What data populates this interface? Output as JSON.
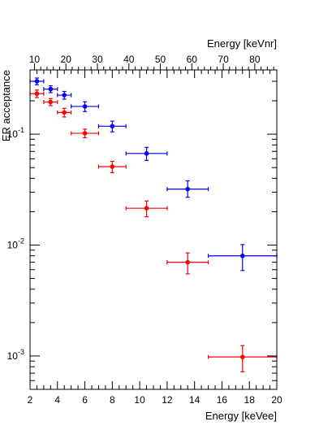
{
  "chart_data": {
    "type": "scatter",
    "xlabel": "Energy [keVee]",
    "x2label": "Energy [keVnr]",
    "ylabel": "ER acceptance",
    "xlim": [
      2,
      20
    ],
    "x2lim": [
      8.6,
      87
    ],
    "ylim": [
      0.0005,
      0.38
    ],
    "yscale": "log",
    "grid": false,
    "x_ticks": [
      "2",
      "4",
      "6",
      "8",
      "10",
      "12",
      "14",
      "16",
      "18",
      "20"
    ],
    "x2_ticks": [
      "10",
      "20",
      "30",
      "40",
      "50",
      "60",
      "70",
      "80"
    ],
    "y_ticks": [
      {
        "base": "10",
        "exp": "-1",
        "value": 0.1
      },
      {
        "base": "10",
        "exp": "-2",
        "value": 0.01
      },
      {
        "base": "10",
        "exp": "-3",
        "value": 0.001
      }
    ],
    "series": [
      {
        "color": "#0000ff",
        "points": [
          {
            "x": 2.5,
            "xerr": 0.5,
            "y": 0.3,
            "yerr_lo": 0.021,
            "yerr_hi": 0.021
          },
          {
            "x": 3.5,
            "xerr": 0.5,
            "y": 0.255,
            "yerr_lo": 0.018,
            "yerr_hi": 0.018
          },
          {
            "x": 4.5,
            "xerr": 0.5,
            "y": 0.225,
            "yerr_lo": 0.018,
            "yerr_hi": 0.018
          },
          {
            "x": 6.0,
            "xerr": 1.0,
            "y": 0.178,
            "yerr_lo": 0.018,
            "yerr_hi": 0.018
          },
          {
            "x": 8.0,
            "xerr": 1.0,
            "y": 0.118,
            "yerr_lo": 0.013,
            "yerr_hi": 0.013
          },
          {
            "x": 10.5,
            "xerr": 1.5,
            "y": 0.067,
            "yerr_lo": 0.009,
            "yerr_hi": 0.009
          },
          {
            "x": 13.5,
            "xerr": 1.5,
            "y": 0.032,
            "yerr_lo": 0.005,
            "yerr_hi": 0.006
          },
          {
            "x": 17.5,
            "xerr": 2.5,
            "y": 0.008,
            "yerr_lo": 0.0021,
            "yerr_hi": 0.0021
          }
        ]
      },
      {
        "color": "#ff0000",
        "points": [
          {
            "x": 2.5,
            "xerr": 0.5,
            "y": 0.232,
            "yerr_lo": 0.018,
            "yerr_hi": 0.018
          },
          {
            "x": 3.5,
            "xerr": 0.5,
            "y": 0.195,
            "yerr_lo": 0.014,
            "yerr_hi": 0.014
          },
          {
            "x": 4.5,
            "xerr": 0.5,
            "y": 0.157,
            "yerr_lo": 0.014,
            "yerr_hi": 0.014
          },
          {
            "x": 6.0,
            "xerr": 1.0,
            "y": 0.102,
            "yerr_lo": 0.009,
            "yerr_hi": 0.009
          },
          {
            "x": 8.0,
            "xerr": 1.0,
            "y": 0.051,
            "yerr_lo": 0.006,
            "yerr_hi": 0.006
          },
          {
            "x": 10.5,
            "xerr": 1.5,
            "y": 0.0215,
            "yerr_lo": 0.0035,
            "yerr_hi": 0.0035
          },
          {
            "x": 13.5,
            "xerr": 1.5,
            "y": 0.007,
            "yerr_lo": 0.0015,
            "yerr_hi": 0.0015
          },
          {
            "x": 17.5,
            "xerr": 2.5,
            "y": 0.00098,
            "yerr_lo": 0.00026,
            "yerr_hi": 0.00026
          }
        ]
      }
    ]
  }
}
